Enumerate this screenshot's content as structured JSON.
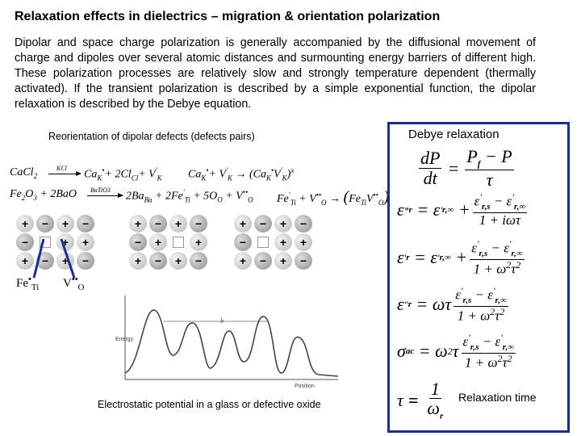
{
  "title": "Relaxation effects in dielectrics – migration & orientation polarization",
  "intro": "Dipolar and space charge polarization is generally accompanied by the diffusional movement of charge and dipoles over several atomic distances and surmounting energy barriers of different high. These polarization processes are relatively slow and strongly temperature dependent (thermally activated). If the transient polarization is described by a simple exponential function, the dipolar relaxation is described by the Debye equation.",
  "left_heading": "Reorientation of dipolar defects (defects pairs)",
  "right_heading": "Debye relaxation",
  "reaction1": {
    "lhs": "CaCl",
    "sub2": "2",
    "arrow_label": "KCl",
    "rhs": "Ca",
    "rhs2": "+ 2Cl",
    "rhs3": "+ V"
  },
  "reaction1b": {
    "text": "Ca",
    "text2": "+ V",
    "text3": "→ (Ca",
    "text4": "V",
    "text5": ")"
  },
  "reaction2": {
    "lhs": "Fe",
    "lhs2": "O",
    "lhs3": " + 2BaO",
    "arrow_label": "BaTiO3",
    "rhs": "2Ba",
    "rhs2": " + 2Fe",
    "rhs3": " + 5O",
    "rhs4": " + V"
  },
  "reaction2b": {
    "text": "Fe",
    "text2": " + V",
    "text3": " → (Fe",
    "text4": "V",
    "text5": ")"
  },
  "defect_labels": {
    "fe": "Fe",
    "fe_sub": "Ti",
    "v": "V",
    "v_sub": "O"
  },
  "plot": {
    "ylabel": "Energy",
    "xlabel": "Position",
    "mark": "b"
  },
  "caption": "Electrostatic potential in a glass or defective oxide",
  "equations": {
    "dp": "dP",
    "dt": "dt",
    "pf": "P",
    "tau": "τ",
    "er": "ε",
    "one": "1",
    "relax_label": "Relaxation time"
  }
}
